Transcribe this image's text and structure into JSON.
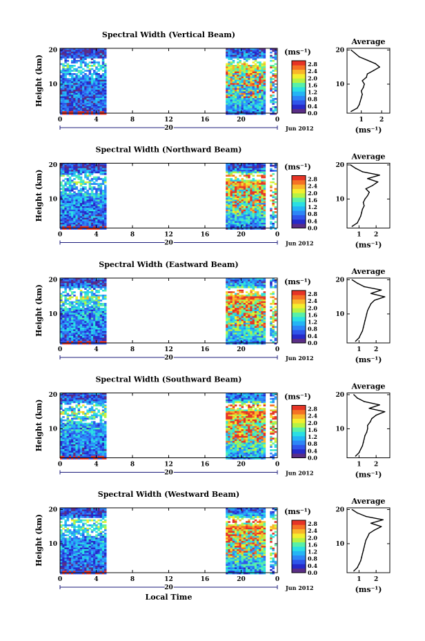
{
  "chart_data": [
    {
      "type": "heatmap",
      "title": "Spectral Width (Vertical Beam)",
      "ylabel": "Height (km)",
      "yticks": [
        "20",
        "10"
      ],
      "ylim": [
        1.5,
        20.5
      ],
      "xticks": [
        "0",
        "4",
        "8",
        "12",
        "16",
        "20",
        "0"
      ],
      "xlim": [
        0,
        24
      ],
      "date_label": "20",
      "date_suffix": "Jun 2012",
      "data_coverage_hours": [
        [
          0,
          4.9
        ],
        [
          18.3,
          23.8
        ]
      ],
      "colorbar": {
        "label": "(ms⁻¹)",
        "ticks": [
          "2.8",
          "2.4",
          "2.0",
          "1.6",
          "1.2",
          "0.8",
          "0.4",
          "0.0"
        ],
        "range": [
          0,
          3
        ]
      },
      "average_profile": {
        "title": "Average",
        "xlabel": "(ms⁻¹)",
        "xticks": [
          "1",
          "2"
        ],
        "xlim": [
          0.3,
          2.4
        ],
        "yticks": [
          "20",
          "10"
        ],
        "height_km": [
          2,
          3,
          4,
          5,
          6,
          7,
          8,
          9,
          10,
          11,
          12,
          13,
          14,
          15,
          16,
          17,
          18,
          19,
          20
        ],
        "width_ms": [
          0.5,
          0.8,
          0.9,
          0.95,
          1.0,
          1.05,
          1.0,
          1.1,
          1.15,
          1.05,
          1.25,
          1.3,
          1.6,
          1.9,
          1.7,
          1.3,
          0.9,
          0.7,
          0.5
        ]
      }
    },
    {
      "type": "heatmap",
      "title": "Spectral Width (Northward Beam)",
      "ylabel": "Height (km)",
      "yticks": [
        "20",
        "10"
      ],
      "ylim": [
        1.5,
        20.5
      ],
      "xticks": [
        "0",
        "4",
        "8",
        "12",
        "16",
        "20",
        "0"
      ],
      "xlim": [
        0,
        24
      ],
      "date_label": "20",
      "date_suffix": "Jun 2012",
      "data_coverage_hours": [
        [
          0,
          4.9
        ],
        [
          18.3,
          23.8
        ]
      ],
      "colorbar": {
        "label": "(ms⁻¹)",
        "ticks": [
          "2.8",
          "2.4",
          "2.0",
          "1.6",
          "1.2",
          "0.8",
          "0.4",
          "0.0"
        ],
        "range": [
          0,
          3
        ]
      },
      "average_profile": {
        "title": "Average",
        "xlabel": "(ms⁻¹)",
        "xticks": [
          "1",
          "2"
        ],
        "xlim": [
          0.3,
          2.8
        ],
        "yticks": [
          "20",
          "10"
        ],
        "height_km": [
          2,
          3,
          4,
          5,
          6,
          7,
          8,
          9,
          10,
          11,
          12,
          13,
          14,
          15,
          16,
          17,
          18,
          19,
          20
        ],
        "width_ms": [
          0.6,
          0.9,
          1.0,
          1.1,
          1.15,
          1.2,
          1.3,
          1.25,
          1.35,
          1.5,
          1.6,
          1.4,
          1.8,
          2.1,
          1.5,
          2.2,
          1.2,
          0.8,
          0.5
        ]
      }
    },
    {
      "type": "heatmap",
      "title": "Spectral Width (Eastward Beam)",
      "ylabel": "Height (km)",
      "yticks": [
        "20",
        "10"
      ],
      "ylim": [
        1.5,
        20.5
      ],
      "xticks": [
        "0",
        "4",
        "8",
        "12",
        "16",
        "20",
        "0"
      ],
      "xlim": [
        0,
        24
      ],
      "date_label": "20",
      "date_suffix": "Jun 2012",
      "data_coverage_hours": [
        [
          0,
          4.9
        ],
        [
          18.3,
          23.8
        ]
      ],
      "colorbar": {
        "label": "(ms⁻¹)",
        "ticks": [
          "2.8",
          "2.4",
          "2.0",
          "1.6",
          "1.2",
          "0.8",
          "0.4",
          "0.0"
        ],
        "range": [
          0,
          3
        ]
      },
      "average_profile": {
        "title": "Average",
        "xlabel": "(ms⁻¹)",
        "xticks": [
          "1",
          "2"
        ],
        "xlim": [
          0.3,
          2.8
        ],
        "yticks": [
          "20",
          "10"
        ],
        "height_km": [
          2,
          3,
          4,
          5,
          6,
          7,
          8,
          9,
          10,
          11,
          12,
          13,
          14,
          15,
          16,
          17,
          18,
          19,
          20
        ],
        "width_ms": [
          0.8,
          1.0,
          1.1,
          1.2,
          1.25,
          1.3,
          1.35,
          1.4,
          1.45,
          1.5,
          1.6,
          1.7,
          1.9,
          2.5,
          1.7,
          2.3,
          1.3,
          0.9,
          0.6
        ]
      }
    },
    {
      "type": "heatmap",
      "title": "Spectral Width (Southward Beam)",
      "ylabel": "Height (km)",
      "yticks": [
        "20",
        "10"
      ],
      "ylim": [
        1.5,
        20.5
      ],
      "xticks": [
        "0",
        "4",
        "8",
        "12",
        "16",
        "20",
        "0"
      ],
      "xlim": [
        0,
        24
      ],
      "date_label": "20",
      "date_suffix": "Jun 2012",
      "data_coverage_hours": [
        [
          0,
          4.9
        ],
        [
          18.3,
          23.8
        ]
      ],
      "colorbar": {
        "label": "(ms⁻¹)",
        "ticks": [
          "2.8",
          "2.4",
          "2.0",
          "1.6",
          "1.2",
          "0.8",
          "0.4",
          "0.0"
        ],
        "range": [
          0,
          3
        ]
      },
      "average_profile": {
        "title": "Average",
        "xlabel": "(ms⁻¹)",
        "xticks": [
          "1",
          "2"
        ],
        "xlim": [
          0.3,
          2.8
        ],
        "yticks": [
          "20",
          "10"
        ],
        "height_km": [
          2,
          3,
          4,
          5,
          6,
          7,
          8,
          9,
          10,
          11,
          12,
          13,
          14,
          15,
          16,
          17,
          18,
          19,
          20
        ],
        "width_ms": [
          0.8,
          1.0,
          1.1,
          1.2,
          1.25,
          1.3,
          1.35,
          1.45,
          1.5,
          1.5,
          1.65,
          1.75,
          2.0,
          2.5,
          1.6,
          2.2,
          1.3,
          0.9,
          0.7
        ]
      }
    },
    {
      "type": "heatmap",
      "title": "Spectral Width (Westward Beam)",
      "ylabel": "Height (km)",
      "yticks": [
        "20",
        "10"
      ],
      "ylim": [
        1.5,
        20.5
      ],
      "xticks": [
        "0",
        "4",
        "8",
        "12",
        "16",
        "20",
        "0"
      ],
      "xlim": [
        0,
        24
      ],
      "date_label": "20",
      "date_suffix": "Jun 2012",
      "xlabel": "Local Time",
      "data_coverage_hours": [
        [
          0,
          4.9
        ],
        [
          18.3,
          23.8
        ]
      ],
      "colorbar": {
        "label": "(ms⁻¹)",
        "ticks": [
          "2.8",
          "2.4",
          "2.0",
          "1.6",
          "1.2",
          "0.8",
          "0.4",
          "0.0"
        ],
        "range": [
          0,
          3
        ]
      },
      "average_profile": {
        "title": "Average",
        "xlabel": "(ms⁻¹)",
        "xticks": [
          "1",
          "2"
        ],
        "xlim": [
          0.3,
          2.8
        ],
        "yticks": [
          "20",
          "10"
        ],
        "height_km": [
          2,
          3,
          4,
          5,
          6,
          7,
          8,
          9,
          10,
          11,
          12,
          13,
          14,
          15,
          16,
          17,
          18,
          19,
          20
        ],
        "width_ms": [
          0.7,
          0.9,
          1.0,
          1.1,
          1.15,
          1.2,
          1.25,
          1.3,
          1.35,
          1.4,
          1.5,
          1.6,
          1.9,
          2.3,
          1.7,
          2.4,
          1.4,
          0.9,
          0.6
        ]
      }
    }
  ]
}
